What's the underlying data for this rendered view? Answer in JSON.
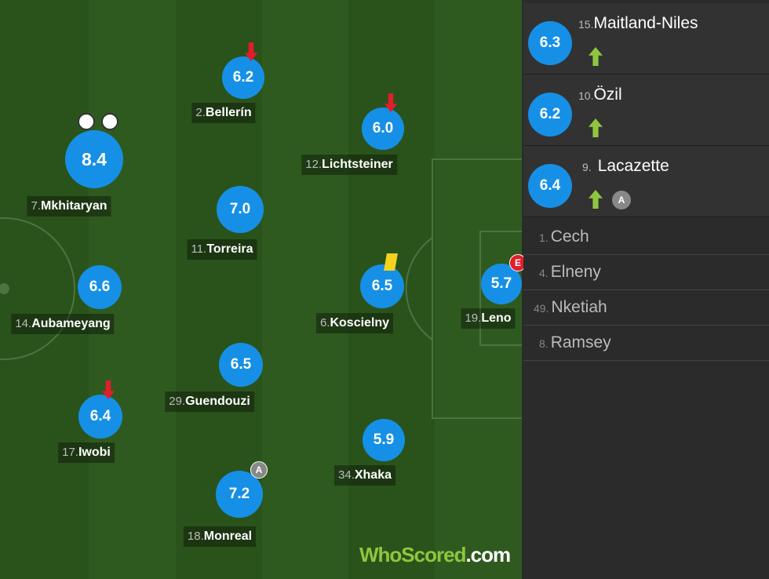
{
  "players": [
    {
      "number": "7.",
      "name": "Mkhitaryan",
      "rating": "8.4"
    },
    {
      "number": "2.",
      "name": "Bellerín",
      "rating": "6.2"
    },
    {
      "number": "12.",
      "name": "Lichtsteiner",
      "rating": "6.0"
    },
    {
      "number": "11.",
      "name": "Torreira",
      "rating": "7.0"
    },
    {
      "number": "14.",
      "name": "Aubameyang",
      "rating": "6.6"
    },
    {
      "number": "6.",
      "name": "Koscielny",
      "rating": "6.5"
    },
    {
      "number": "19.",
      "name": "Leno",
      "rating": "5.7",
      "badge": "E"
    },
    {
      "number": "29.",
      "name": "Guendouzi",
      "rating": "6.5"
    },
    {
      "number": "17.",
      "name": "Iwobi",
      "rating": "6.4"
    },
    {
      "number": "34.",
      "name": "Xhaka",
      "rating": "5.9"
    },
    {
      "number": "18.",
      "name": "Monreal",
      "rating": "7.2",
      "badge": "A"
    }
  ],
  "substitutes": [
    {
      "number": "15.",
      "name": "Maitland-Niles",
      "rating": "6.3"
    },
    {
      "number": "10.",
      "name": "Özil",
      "rating": "6.2"
    },
    {
      "number": "9.",
      "name": "Lacazette",
      "rating": "6.4",
      "badge": "A"
    }
  ],
  "bench": [
    {
      "number": "1.",
      "name": "Cech"
    },
    {
      "number": "4.",
      "name": "Elneny"
    },
    {
      "number": "49.",
      "name": "Nketiah"
    },
    {
      "number": "8.",
      "name": "Ramsey"
    }
  ],
  "logo": {
    "brand": "WhoScored",
    "suffix": ".com"
  }
}
